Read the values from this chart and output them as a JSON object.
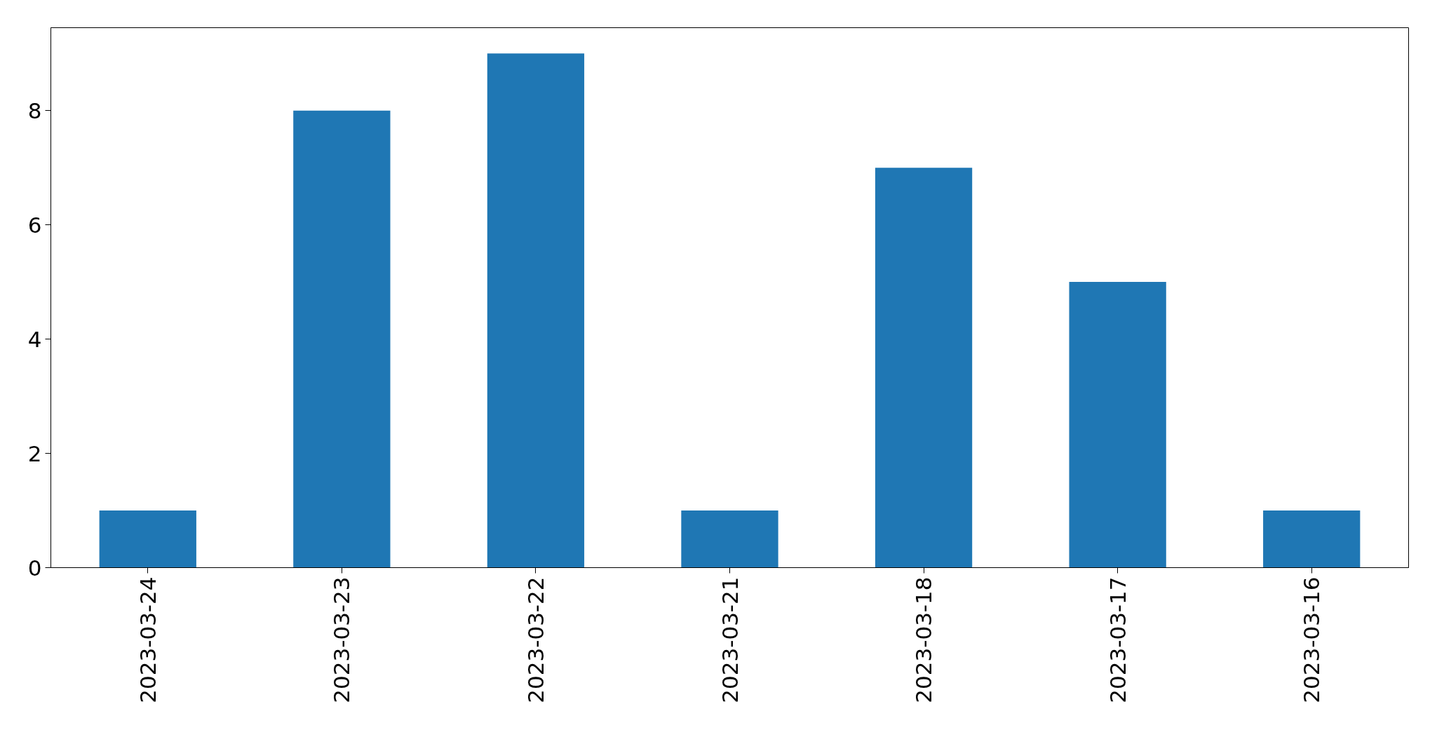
{
  "chart_data": {
    "type": "bar",
    "categories": [
      "2023-03-24",
      "2023-03-23",
      "2023-03-22",
      "2023-03-21",
      "2023-03-18",
      "2023-03-17",
      "2023-03-16"
    ],
    "values": [
      1,
      8,
      9,
      1,
      7,
      5,
      1
    ],
    "color": "#1f77b4",
    "ylim": [
      0,
      9.45
    ],
    "yticks": [
      0,
      2,
      4,
      6,
      8
    ],
    "grid": false
  }
}
